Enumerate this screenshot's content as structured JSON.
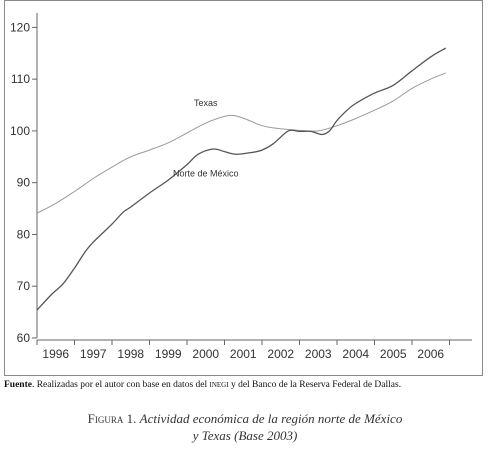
{
  "chart_data": {
    "type": "line",
    "title": "",
    "xlabel": "",
    "ylabel": "",
    "ylim": [
      60,
      122
    ],
    "yticks": [
      60,
      70,
      80,
      90,
      100,
      110,
      120
    ],
    "xlim": [
      1995.5,
      2006.7
    ],
    "xticks": [
      "1996",
      "1997",
      "1998",
      "1999",
      "2000",
      "2001",
      "2002",
      "2003",
      "2004",
      "2005",
      "2006"
    ],
    "grid": false,
    "series": [
      {
        "name": "Texas",
        "color": "#9a9a9a",
        "points": [
          [
            1995.5,
            84.1
          ],
          [
            1996.0,
            86.0
          ],
          [
            1996.5,
            88.3
          ],
          [
            1997.0,
            90.8
          ],
          [
            1997.5,
            93.0
          ],
          [
            1998.0,
            95.0
          ],
          [
            1998.5,
            96.3
          ],
          [
            1999.0,
            97.7
          ],
          [
            1999.5,
            99.6
          ],
          [
            2000.0,
            101.5
          ],
          [
            2000.5,
            102.8
          ],
          [
            2000.8,
            102.9
          ],
          [
            2001.2,
            101.9
          ],
          [
            2001.5,
            101.0
          ],
          [
            2002.0,
            100.4
          ],
          [
            2002.5,
            100.1
          ],
          [
            2003.0,
            100.0
          ],
          [
            2003.5,
            101.0
          ],
          [
            2004.0,
            102.4
          ],
          [
            2004.5,
            104.0
          ],
          [
            2005.0,
            105.8
          ],
          [
            2005.5,
            108.2
          ],
          [
            2006.0,
            110.0
          ],
          [
            2006.4,
            111.2
          ]
        ]
      },
      {
        "name": "Norte de México",
        "color": "#555555",
        "points": [
          [
            1995.5,
            65.4
          ],
          [
            1995.9,
            68.5
          ],
          [
            1996.2,
            70.5
          ],
          [
            1996.5,
            73.5
          ],
          [
            1996.8,
            76.8
          ],
          [
            1997.0,
            78.5
          ],
          [
            1997.5,
            82.0
          ],
          [
            1997.8,
            84.3
          ],
          [
            1998.0,
            85.3
          ],
          [
            1998.5,
            88.0
          ],
          [
            1999.0,
            90.5
          ],
          [
            1999.5,
            93.5
          ],
          [
            1999.8,
            95.5
          ],
          [
            2000.2,
            96.5
          ],
          [
            2000.5,
            96.0
          ],
          [
            2000.8,
            95.5
          ],
          [
            2001.2,
            95.8
          ],
          [
            2001.5,
            96.3
          ],
          [
            2001.8,
            97.5
          ],
          [
            2002.2,
            100.0
          ],
          [
            2002.5,
            99.9
          ],
          [
            2002.8,
            99.9
          ],
          [
            2003.1,
            99.3
          ],
          [
            2003.3,
            100.0
          ],
          [
            2003.5,
            102.0
          ],
          [
            2003.8,
            104.2
          ],
          [
            2004.0,
            105.3
          ],
          [
            2004.5,
            107.3
          ],
          [
            2005.0,
            108.8
          ],
          [
            2005.5,
            111.6
          ],
          [
            2006.0,
            114.3
          ],
          [
            2006.4,
            116.0
          ]
        ]
      }
    ]
  },
  "source_note": {
    "label": "Fuente",
    "text_before": ". Realizadas por el autor con base en datos del ",
    "inegi": "inegi",
    "text_after": " y del Banco de la Reserva Federal de Dallas."
  },
  "caption": {
    "label": "Figura 1.",
    "line1": "Actividad económica de la región norte de México",
    "line2": "y Texas (Base 2003)"
  }
}
